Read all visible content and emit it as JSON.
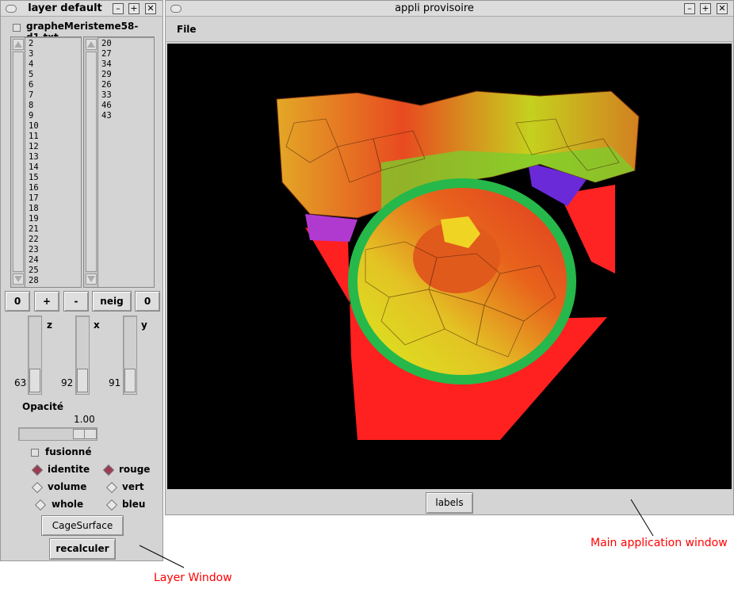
{
  "layer_window": {
    "title": "layer default",
    "file_label": "grapheMeristeme58-d1.txt",
    "list_left": [
      "2",
      "3",
      "4",
      "5",
      "6",
      "7",
      "8",
      "9",
      "10",
      "11",
      "12",
      "13",
      "14",
      "15",
      "16",
      "17",
      "18",
      "19",
      "21",
      "22",
      "23",
      "24",
      "25",
      "28"
    ],
    "list_right": [
      "20",
      "27",
      "34",
      "29",
      "26",
      "33",
      "46",
      "43"
    ],
    "buttons": {
      "zero_left": "0",
      "plus": "+",
      "minus": "-",
      "neig": "neig",
      "zero_right": "0"
    },
    "sliders": {
      "z": {
        "label": "z",
        "value": "63"
      },
      "x": {
        "label": "x",
        "value": "92"
      },
      "y": {
        "label": "y",
        "value": "91"
      }
    },
    "opacity": {
      "label": "Opacité",
      "value": "1.00",
      "level": 1.0
    },
    "fusionne_label": "fusionné",
    "radio_left": [
      "identite",
      "volume",
      "whole"
    ],
    "radio_right": [
      "rouge",
      "vert",
      "bleu"
    ],
    "cage_button": "CageSurface",
    "recalc_button": "recalculer"
  },
  "main_window": {
    "title": "appli provisoire",
    "menu_file": "File",
    "labels_button": "labels"
  },
  "annotations": {
    "layer": "Layer Window",
    "main": "Main application window"
  },
  "colors": {
    "window_bg": "#d4d4d4",
    "viewport_bg": "#000000",
    "annotation": "#ff0000",
    "radio_selected": "#9c3b52"
  }
}
